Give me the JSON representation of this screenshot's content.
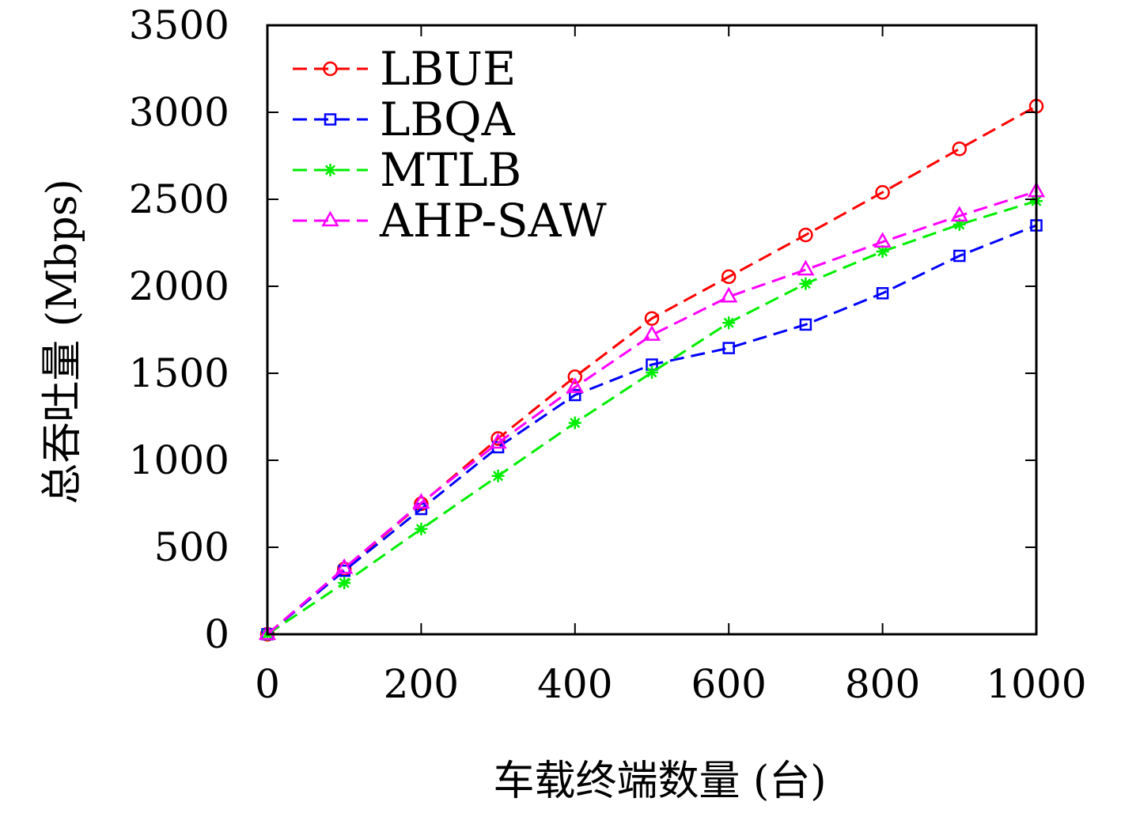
{
  "chart_data": {
    "type": "line",
    "title": "",
    "xlabel": "车载终端数量 (台)",
    "ylabel": "总吞吐量 (Mbps)",
    "xlim": [
      0,
      1000
    ],
    "ylim": [
      0,
      3500
    ],
    "xticks": [
      0,
      200,
      400,
      600,
      800,
      1000
    ],
    "yticks": [
      0,
      500,
      1000,
      1500,
      2000,
      2500,
      3000,
      3500
    ],
    "grid": false,
    "legend_position": "top-left",
    "x": [
      0,
      100,
      200,
      300,
      400,
      500,
      600,
      700,
      800,
      900,
      1000
    ],
    "series": [
      {
        "name": "LBUE",
        "color": "#ff0000",
        "marker": "circle",
        "values": [
          0,
          375,
          750,
          1125,
          1480,
          1815,
          2055,
          2295,
          2540,
          2790,
          3035
        ]
      },
      {
        "name": "LBQA",
        "color": "#0000ff",
        "marker": "square",
        "values": [
          0,
          365,
          720,
          1075,
          1375,
          1550,
          1645,
          1780,
          1960,
          2175,
          2350
        ]
      },
      {
        "name": "MTLB",
        "color": "#00ee00",
        "marker": "star",
        "values": [
          0,
          295,
          605,
          910,
          1215,
          1505,
          1790,
          2015,
          2200,
          2355,
          2490
        ]
      },
      {
        "name": "AHP-SAW",
        "color": "#ff00ff",
        "marker": "triangle",
        "values": [
          0,
          380,
          755,
          1100,
          1420,
          1720,
          1940,
          2095,
          2255,
          2405,
          2545
        ]
      }
    ]
  }
}
